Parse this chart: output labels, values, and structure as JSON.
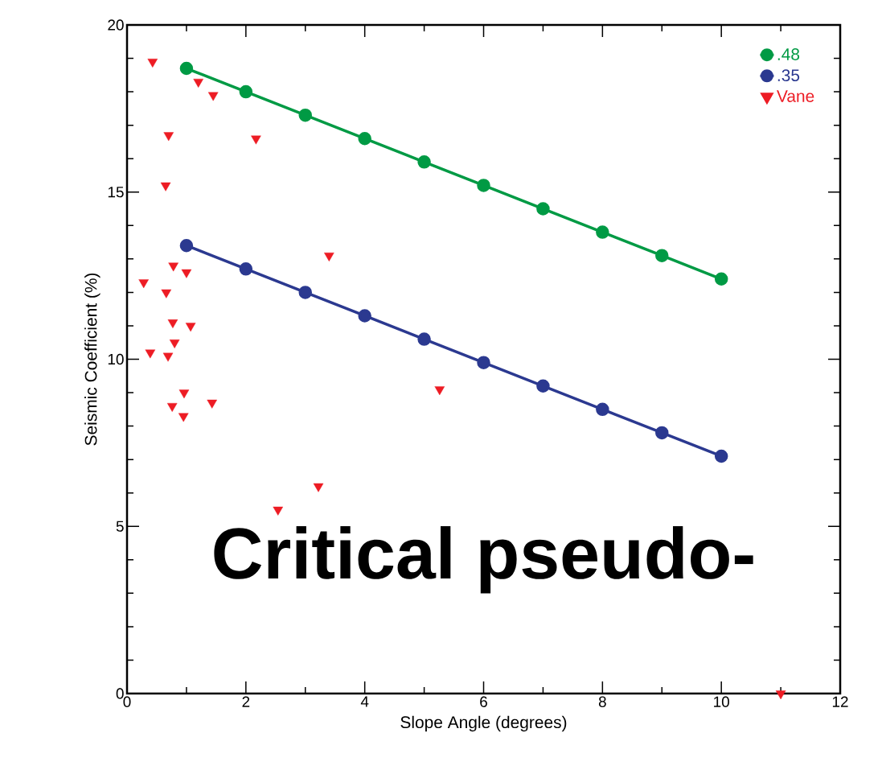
{
  "chart_data": {
    "type": "line",
    "xlabel": "Slope Angle (degrees)",
    "ylabel": "Seismic Coefficient (%)",
    "annotations": [
      "Critical pseudo-"
    ],
    "xlim": [
      0,
      12
    ],
    "ylim": [
      0,
      20
    ],
    "xticks": [
      0,
      2,
      4,
      6,
      8,
      10,
      12
    ],
    "yticks": [
      0,
      5,
      10,
      15,
      20
    ],
    "legend": "top right",
    "grid": false,
    "series": [
      {
        "name": ".48",
        "color": "#009a44",
        "marker": "circle",
        "x": [
          1,
          2,
          3,
          4,
          5,
          6,
          7,
          8,
          9,
          10
        ],
        "values": [
          18.7,
          18.0,
          17.3,
          16.6,
          15.9,
          15.2,
          14.5,
          13.8,
          13.1,
          12.4
        ]
      },
      {
        "name": ".35",
        "color": "#2b3990",
        "marker": "circle",
        "x": [
          1,
          2,
          3,
          4,
          5,
          6,
          7,
          8,
          9,
          10
        ],
        "values": [
          13.4,
          12.7,
          12.0,
          11.3,
          10.6,
          9.9,
          9.2,
          8.5,
          7.8,
          7.1
        ]
      },
      {
        "name": "Vane",
        "type": "scatter",
        "color": "#ed1c24",
        "marker": "triangle",
        "x": [
          0.43,
          1.2,
          1.45,
          0.7,
          2.17,
          0.65,
          3.4,
          0.28,
          0.78,
          1.0,
          0.66,
          0.77,
          1.07,
          0.8,
          0.39,
          0.69,
          0.96,
          0.76,
          0.95,
          1.43,
          5.26,
          3.22,
          2.54,
          11.0
        ],
        "values": [
          18.9,
          18.3,
          17.9,
          16.7,
          16.6,
          15.2,
          13.1,
          12.3,
          12.8,
          12.6,
          12.0,
          11.1,
          11.0,
          10.5,
          10.2,
          10.1,
          9.0,
          8.6,
          8.3,
          8.7,
          9.1,
          6.2,
          5.5,
          0.0
        ]
      }
    ]
  }
}
